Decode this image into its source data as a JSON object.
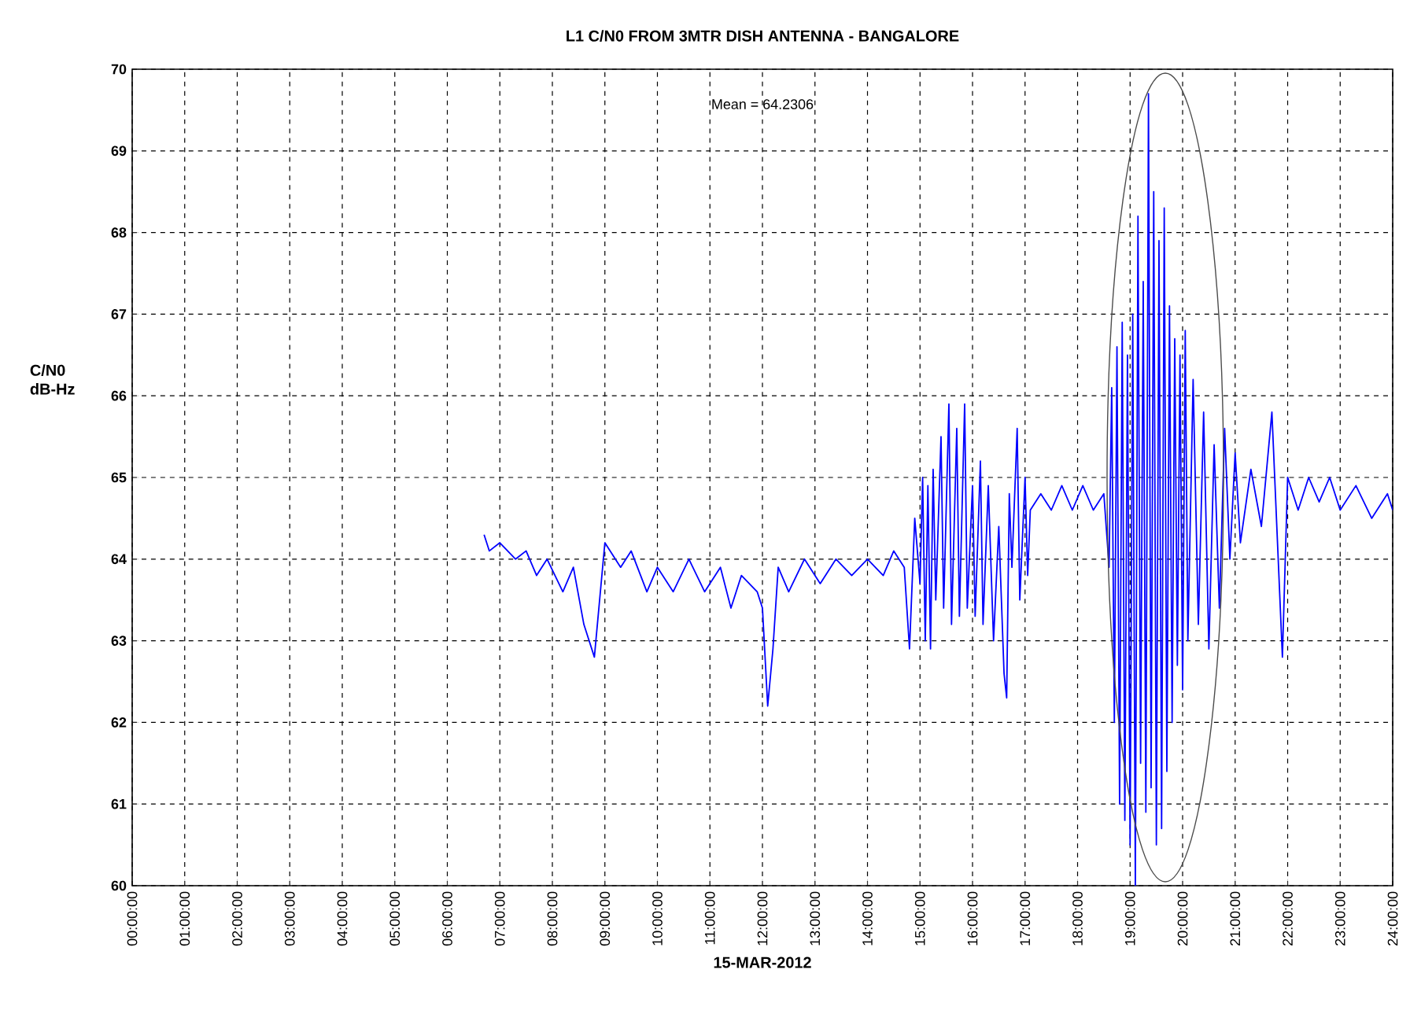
{
  "chart_data": {
    "type": "line",
    "title": "L1 C/N0 FROM 3MTR DISH ANTENNA - BANGALORE",
    "xlabel": "15-MAR-2012",
    "ylabel": "C/N0 dB-Hz",
    "annotations": [
      "Mean = 64.2306"
    ],
    "xlim": [
      0,
      24
    ],
    "ylim": [
      60,
      70
    ],
    "xticks": [
      {
        "value": 0,
        "label": "00:00:00"
      },
      {
        "value": 1,
        "label": "01:00:00"
      },
      {
        "value": 2,
        "label": "02:00:00"
      },
      {
        "value": 3,
        "label": "03:00:00"
      },
      {
        "value": 4,
        "label": "04:00:00"
      },
      {
        "value": 5,
        "label": "05:00:00"
      },
      {
        "value": 6,
        "label": "06:00:00"
      },
      {
        "value": 7,
        "label": "07:00:00"
      },
      {
        "value": 8,
        "label": "08:00:00"
      },
      {
        "value": 9,
        "label": "09:00:00"
      },
      {
        "value": 10,
        "label": "10:00:00"
      },
      {
        "value": 11,
        "label": "11:00:00"
      },
      {
        "value": 12,
        "label": "12:00:00"
      },
      {
        "value": 13,
        "label": "13:00:00"
      },
      {
        "value": 14,
        "label": "14:00:00"
      },
      {
        "value": 15,
        "label": "15:00:00"
      },
      {
        "value": 16,
        "label": "16:00:00"
      },
      {
        "value": 17,
        "label": "17:00:00"
      },
      {
        "value": 18,
        "label": "18:00:00"
      },
      {
        "value": 19,
        "label": "19:00:00"
      },
      {
        "value": 20,
        "label": "20:00:00"
      },
      {
        "value": 21,
        "label": "21:00:00"
      },
      {
        "value": 22,
        "label": "22:00:00"
      },
      {
        "value": 23,
        "label": "23:00:00"
      },
      {
        "value": 24,
        "label": "24:00:00"
      }
    ],
    "yticks": [
      60,
      61,
      62,
      63,
      64,
      65,
      66,
      67,
      68,
      69,
      70
    ],
    "grid": true,
    "line_style": "solid",
    "series": [
      {
        "color": "#0000ff",
        "x": [
          6.7,
          6.8,
          7.0,
          7.3,
          7.5,
          7.7,
          7.9,
          8.2,
          8.4,
          8.6,
          8.8,
          8.9,
          9.0,
          9.3,
          9.5,
          9.8,
          10.0,
          10.3,
          10.6,
          10.9,
          11.2,
          11.4,
          11.6,
          11.9,
          12.0,
          12.1,
          12.2,
          12.3,
          12.5,
          12.8,
          13.1,
          13.4,
          13.7,
          14.0,
          14.3,
          14.5,
          14.7,
          14.8,
          14.9,
          15.0,
          15.05,
          15.1,
          15.15,
          15.2,
          15.25,
          15.3,
          15.4,
          15.45,
          15.55,
          15.6,
          15.7,
          15.75,
          15.85,
          15.9,
          16.0,
          16.05,
          16.15,
          16.2,
          16.3,
          16.4,
          16.5,
          16.6,
          16.65,
          16.7,
          16.75,
          16.85,
          16.9,
          17.0,
          17.05,
          17.1,
          17.3,
          17.5,
          17.7,
          17.9,
          18.1,
          18.3,
          18.5,
          18.6,
          18.65,
          18.7,
          18.75,
          18.8,
          18.85,
          18.9,
          18.95,
          19.0,
          19.05,
          19.1,
          19.15,
          19.2,
          19.25,
          19.3,
          19.35,
          19.4,
          19.45,
          19.5,
          19.55,
          19.6,
          19.65,
          19.7,
          19.75,
          19.8,
          19.85,
          19.9,
          19.95,
          20.0,
          20.05,
          20.1,
          20.2,
          20.3,
          20.4,
          20.5,
          20.6,
          20.7,
          20.8,
          20.9,
          21.0,
          21.1,
          21.3,
          21.5,
          21.7,
          21.8,
          21.9,
          22.0,
          22.2,
          22.4,
          22.6,
          22.8,
          23.0,
          23.3,
          23.6,
          23.9,
          24.0
        ],
        "values": [
          64.3,
          64.1,
          64.2,
          64.0,
          64.1,
          63.8,
          64.0,
          63.6,
          63.9,
          63.2,
          62.8,
          63.5,
          64.2,
          63.9,
          64.1,
          63.6,
          63.9,
          63.6,
          64.0,
          63.6,
          63.9,
          63.4,
          63.8,
          63.6,
          63.4,
          62.2,
          62.9,
          63.9,
          63.6,
          64.0,
          63.7,
          64.0,
          63.8,
          64.0,
          63.8,
          64.1,
          63.9,
          62.9,
          64.5,
          63.7,
          65.0,
          63.0,
          64.9,
          62.9,
          65.1,
          63.5,
          65.5,
          63.4,
          65.9,
          63.2,
          65.6,
          63.3,
          65.9,
          63.4,
          64.9,
          63.3,
          65.2,
          63.2,
          64.9,
          63.0,
          64.4,
          62.6,
          62.3,
          64.8,
          63.9,
          65.6,
          63.5,
          65.0,
          63.8,
          64.6,
          64.8,
          64.6,
          64.9,
          64.6,
          64.9,
          64.6,
          64.8,
          63.9,
          66.1,
          62.0,
          66.6,
          61.0,
          66.9,
          60.8,
          66.5,
          60.5,
          67.0,
          60.0,
          68.2,
          61.5,
          67.4,
          60.9,
          69.7,
          61.2,
          68.5,
          60.5,
          67.9,
          60.7,
          68.3,
          61.4,
          67.1,
          62.0,
          66.7,
          62.7,
          66.5,
          62.4,
          66.8,
          63.0,
          66.2,
          63.2,
          65.8,
          62.9,
          65.4,
          63.4,
          65.6,
          64.0,
          65.3,
          64.2,
          65.1,
          64.4,
          65.8,
          64.3,
          62.8,
          65.0,
          64.6,
          65.0,
          64.7,
          65.0,
          64.6,
          64.9,
          64.5,
          64.8,
          64.6
        ]
      }
    ]
  }
}
